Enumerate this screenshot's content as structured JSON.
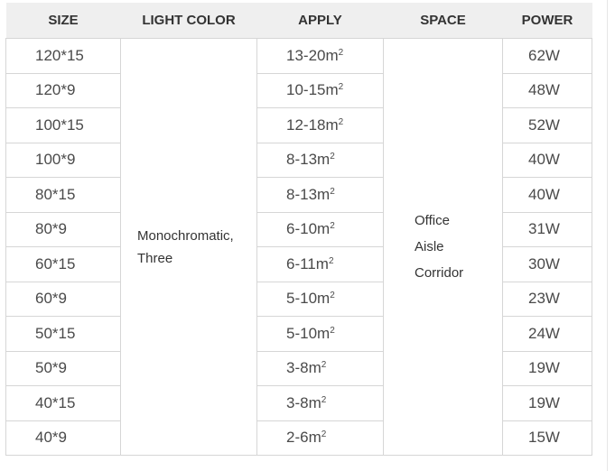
{
  "headers": [
    "SIZE",
    "LIGHT COLOR",
    "APPLY",
    "SPACE",
    "POWER"
  ],
  "light_color": [
    "Monochromatic,",
    "Three"
  ],
  "space": [
    "Office",
    "Aisle",
    "Corridor"
  ],
  "area_unit_sup": "2",
  "rows": [
    {
      "size": "120*15",
      "apply": "13-20m",
      "power": "62W"
    },
    {
      "size": "120*9",
      "apply": "10-15m",
      "power": "48W"
    },
    {
      "size": "100*15",
      "apply": "12-18m",
      "power": "52W"
    },
    {
      "size": "100*9",
      "apply": "8-13m",
      "power": "40W"
    },
    {
      "size": "80*15",
      "apply": "8-13m",
      "power": "40W"
    },
    {
      "size": "80*9",
      "apply": "6-10m",
      "power": "31W"
    },
    {
      "size": "60*15",
      "apply": "6-11m",
      "power": "30W"
    },
    {
      "size": "60*9",
      "apply": "5-10m",
      "power": "23W"
    },
    {
      "size": "50*15",
      "apply": "5-10m",
      "power": "24W"
    },
    {
      "size": "50*9",
      "apply": "3-8m",
      "power": "19W"
    },
    {
      "size": "40*15",
      "apply": "3-8m",
      "power": "19W"
    },
    {
      "size": "40*9",
      "apply": "2-6m",
      "power": "15W"
    }
  ]
}
